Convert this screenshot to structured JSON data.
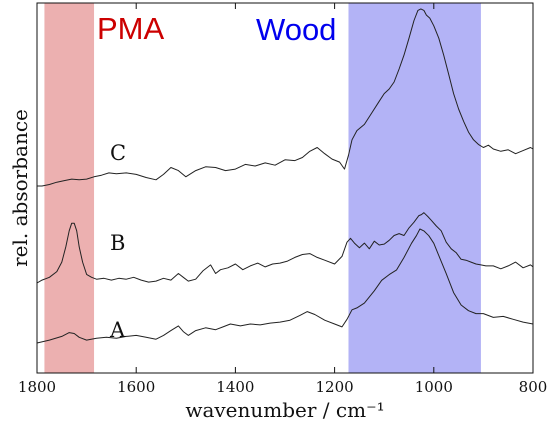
{
  "chart_data": {
    "type": "line",
    "xlabel": "wavenumber / cm⁻¹",
    "ylabel": "rel. absorbance",
    "xlim": [
      1800,
      800
    ],
    "x_reversed": true,
    "x_ticks": [
      1800,
      1600,
      1400,
      1200,
      1000,
      800
    ],
    "y_tick_labels_shown": false,
    "grid": false,
    "highlight_bands": [
      {
        "label": "PMA",
        "range": [
          1785,
          1685
        ],
        "color": "#e07b7b",
        "label_color": "#cc0000"
      },
      {
        "label": "Wood",
        "range": [
          1172,
          905
        ],
        "color": "#8080f0",
        "label_color": "#0000ee"
      }
    ],
    "series": [
      {
        "name": "A",
        "x": [
          1800,
          1775,
          1750,
          1735,
          1725,
          1715,
          1700,
          1680,
          1660,
          1640,
          1620,
          1600,
          1580,
          1560,
          1545,
          1530,
          1515,
          1505,
          1495,
          1480,
          1460,
          1440,
          1425,
          1410,
          1390,
          1370,
          1350,
          1330,
          1310,
          1290,
          1270,
          1255,
          1240,
          1220,
          1200,
          1185,
          1175,
          1165,
          1155,
          1140,
          1120,
          1105,
          1090,
          1075,
          1060,
          1045,
          1035,
          1028,
          1020,
          1010,
          1000,
          990,
          975,
          960,
          945,
          930,
          915,
          900,
          880,
          860,
          840,
          820,
          800
        ],
        "y": [
          0.0,
          0.03,
          0.07,
          0.11,
          0.1,
          0.06,
          0.03,
          0.05,
          0.06,
          0.05,
          0.07,
          0.08,
          0.06,
          0.04,
          0.08,
          0.13,
          0.18,
          0.12,
          0.08,
          0.13,
          0.16,
          0.14,
          0.17,
          0.2,
          0.18,
          0.2,
          0.19,
          0.21,
          0.22,
          0.24,
          0.29,
          0.33,
          0.3,
          0.24,
          0.2,
          0.17,
          0.25,
          0.35,
          0.37,
          0.42,
          0.55,
          0.66,
          0.72,
          0.77,
          0.9,
          1.05,
          1.13,
          1.2,
          1.18,
          1.13,
          1.05,
          0.92,
          0.73,
          0.53,
          0.4,
          0.34,
          0.31,
          0.31,
          0.27,
          0.28,
          0.25,
          0.22,
          0.2
        ]
      },
      {
        "name": "B",
        "x": [
          1800,
          1790,
          1775,
          1760,
          1750,
          1742,
          1735,
          1730,
          1725,
          1720,
          1715,
          1708,
          1700,
          1690,
          1680,
          1665,
          1650,
          1635,
          1620,
          1605,
          1590,
          1575,
          1560,
          1545,
          1530,
          1515,
          1505,
          1495,
          1480,
          1465,
          1450,
          1440,
          1430,
          1415,
          1400,
          1385,
          1370,
          1355,
          1340,
          1325,
          1310,
          1295,
          1280,
          1265,
          1250,
          1235,
          1220,
          1200,
          1185,
          1175,
          1168,
          1160,
          1150,
          1140,
          1130,
          1120,
          1110,
          1100,
          1090,
          1080,
          1070,
          1060,
          1050,
          1040,
          1030,
          1025,
          1020,
          1012,
          1005,
          995,
          985,
          975,
          965,
          955,
          945,
          935,
          925,
          915,
          905,
          895,
          880,
          865,
          850,
          835,
          820,
          805,
          800
        ],
        "y": [
          0.0,
          0.03,
          0.06,
          0.12,
          0.22,
          0.38,
          0.55,
          0.63,
          0.63,
          0.55,
          0.38,
          0.22,
          0.09,
          0.06,
          0.04,
          0.05,
          0.03,
          0.05,
          0.04,
          0.06,
          0.03,
          0.01,
          0.02,
          0.05,
          0.03,
          0.1,
          0.06,
          0.02,
          0.04,
          0.13,
          0.19,
          0.1,
          0.14,
          0.16,
          0.2,
          0.14,
          0.18,
          0.21,
          0.17,
          0.2,
          0.21,
          0.23,
          0.27,
          0.3,
          0.31,
          0.27,
          0.24,
          0.2,
          0.28,
          0.43,
          0.47,
          0.42,
          0.37,
          0.42,
          0.36,
          0.44,
          0.4,
          0.41,
          0.45,
          0.5,
          0.52,
          0.5,
          0.58,
          0.64,
          0.71,
          0.72,
          0.74,
          0.7,
          0.66,
          0.6,
          0.55,
          0.43,
          0.36,
          0.32,
          0.25,
          0.24,
          0.22,
          0.2,
          0.19,
          0.18,
          0.18,
          0.15,
          0.18,
          0.22,
          0.16,
          0.19,
          0.17
        ]
      },
      {
        "name": "C",
        "x": [
          1800,
          1790,
          1775,
          1760,
          1745,
          1730,
          1715,
          1700,
          1685,
          1670,
          1655,
          1640,
          1620,
          1600,
          1580,
          1560,
          1545,
          1530,
          1515,
          1500,
          1480,
          1460,
          1440,
          1420,
          1400,
          1380,
          1360,
          1340,
          1320,
          1300,
          1280,
          1265,
          1250,
          1235,
          1220,
          1205,
          1190,
          1180,
          1172,
          1165,
          1155,
          1140,
          1125,
          1110,
          1100,
          1090,
          1080,
          1070,
          1060,
          1050,
          1040,
          1032,
          1026,
          1020,
          1015,
          1008,
          1000,
          990,
          980,
          970,
          960,
          950,
          940,
          930,
          920,
          910,
          900,
          890,
          880,
          865,
          850,
          835,
          820,
          805,
          800
        ],
        "y": [
          0.0,
          0.0,
          0.02,
          0.05,
          0.07,
          0.09,
          0.08,
          0.09,
          0.12,
          0.14,
          0.17,
          0.16,
          0.17,
          0.15,
          0.11,
          0.08,
          0.15,
          0.24,
          0.2,
          0.12,
          0.2,
          0.25,
          0.24,
          0.2,
          0.22,
          0.28,
          0.26,
          0.3,
          0.27,
          0.34,
          0.33,
          0.37,
          0.45,
          0.5,
          0.42,
          0.35,
          0.31,
          0.22,
          0.4,
          0.6,
          0.72,
          0.8,
          0.95,
          1.1,
          1.2,
          1.26,
          1.35,
          1.52,
          1.7,
          1.92,
          2.15,
          2.28,
          2.3,
          2.28,
          2.22,
          2.18,
          2.08,
          1.92,
          1.7,
          1.45,
          1.2,
          1.0,
          0.84,
          0.7,
          0.6,
          0.54,
          0.5,
          0.53,
          0.48,
          0.45,
          0.47,
          0.42,
          0.46,
          0.5,
          0.48
        ]
      }
    ]
  }
}
